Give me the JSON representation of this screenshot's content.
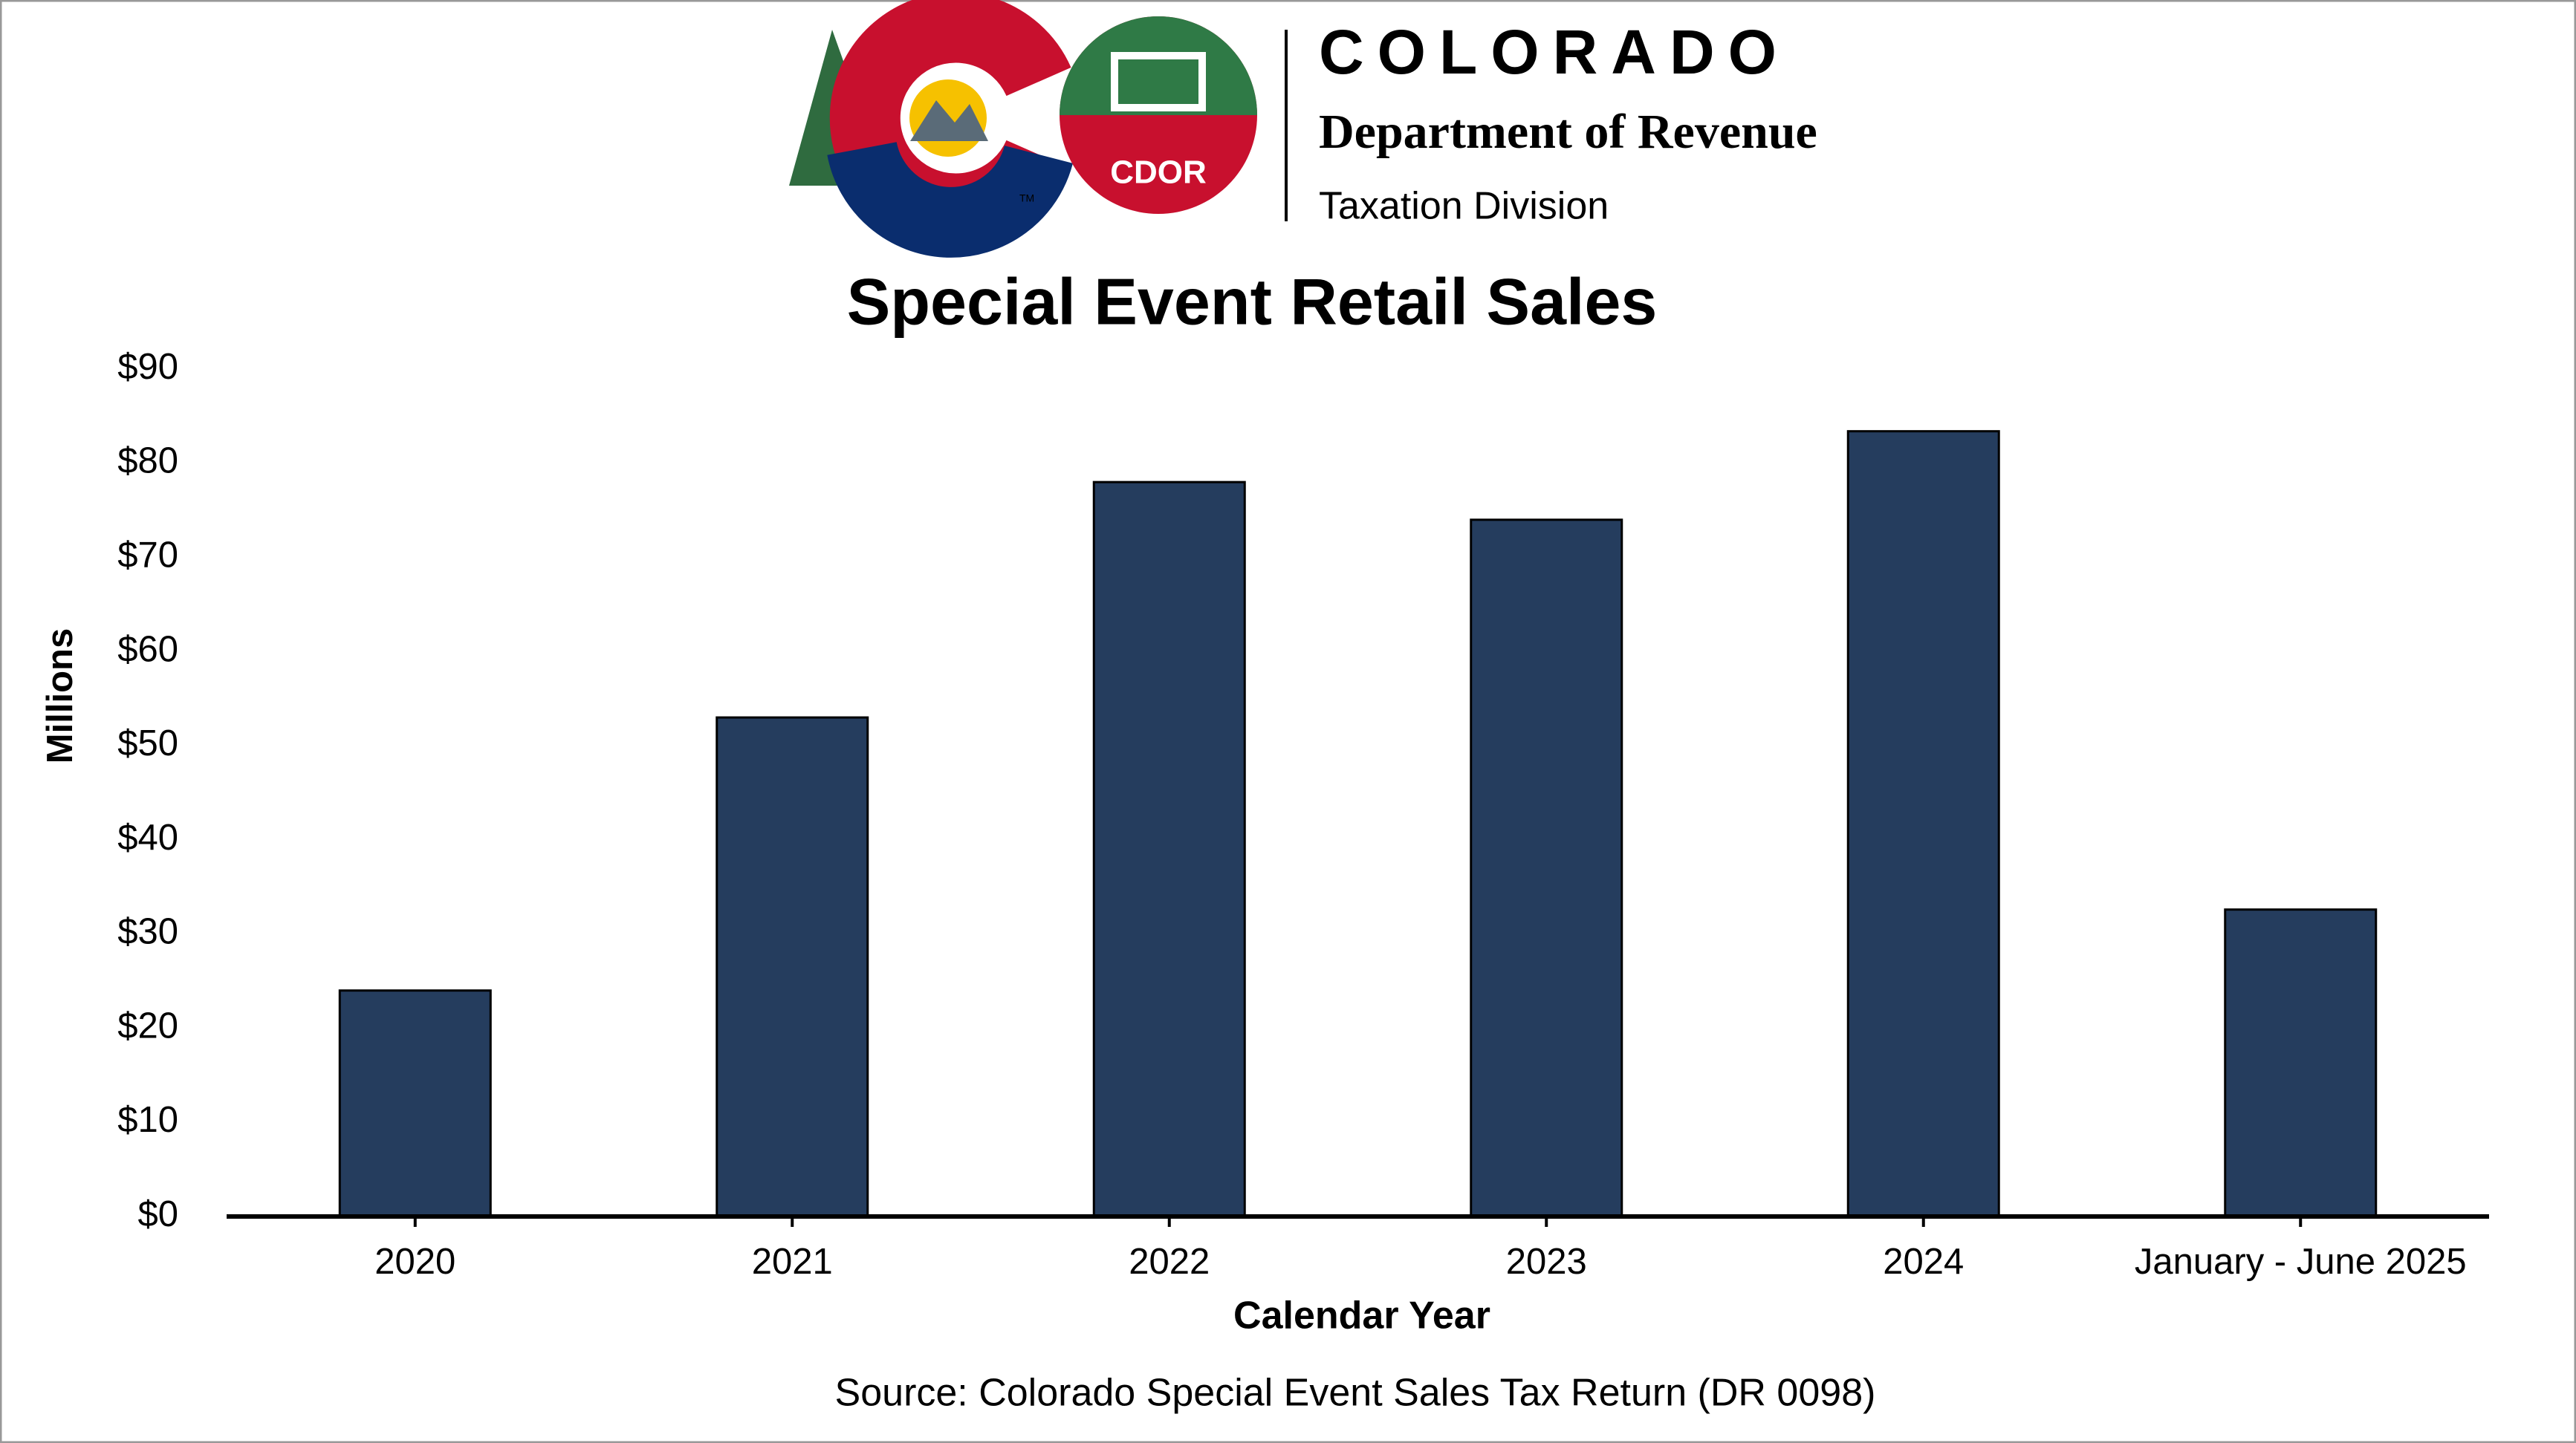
{
  "header": {
    "state": "COLORADO",
    "department": "Department of Revenue",
    "division": "Taxation Division",
    "badge": "CDOR",
    "trademark": "TM"
  },
  "chart_data": {
    "type": "bar",
    "title": "Special Event Retail Sales",
    "y_label": "Millions",
    "x_label": "Calendar Year",
    "source": "Source: Colorado Special Event Sales Tax Return (DR 0098)",
    "categories": [
      "2020",
      "2021",
      "2022",
      "2023",
      "2024",
      "January - June 2025"
    ],
    "values": [
      24,
      53,
      78,
      74,
      83.4,
      32.6
    ],
    "color": "#253d5e",
    "ylim": [
      0,
      90
    ],
    "yticks": [
      {
        "value": 0,
        "label": "$0"
      },
      {
        "value": 10,
        "label": "$10"
      },
      {
        "value": 20,
        "label": "$20"
      },
      {
        "value": 30,
        "label": "$30"
      },
      {
        "value": 40,
        "label": "$40"
      },
      {
        "value": 50,
        "label": "$50"
      },
      {
        "value": 60,
        "label": "$60"
      },
      {
        "value": 70,
        "label": "$70"
      },
      {
        "value": 80,
        "label": "$80"
      },
      {
        "value": 90,
        "label": "$90"
      }
    ],
    "grid": false
  }
}
